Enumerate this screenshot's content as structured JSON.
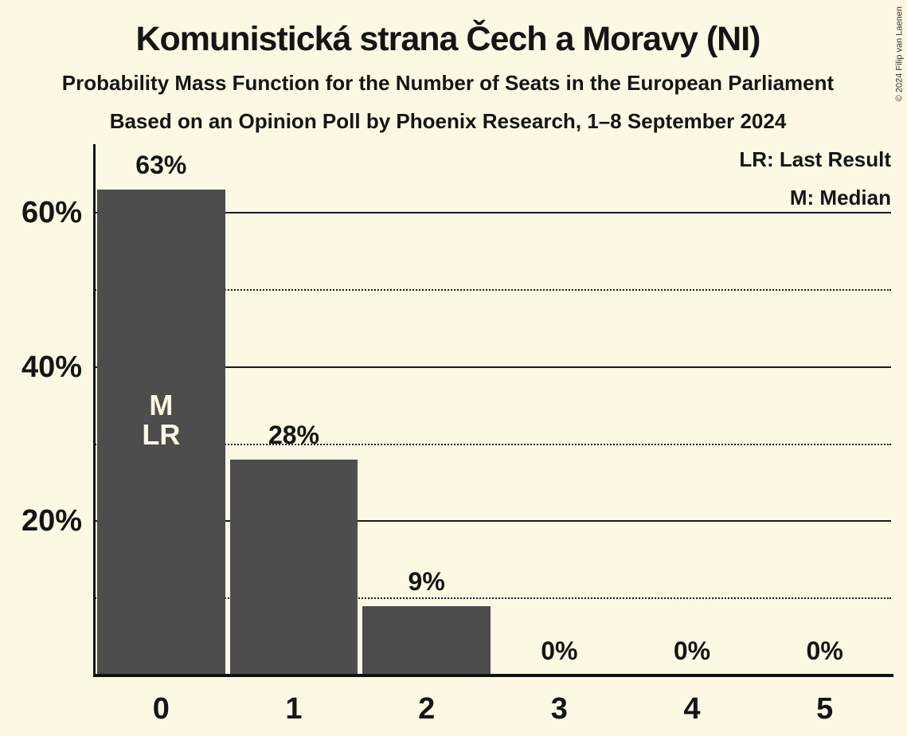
{
  "title": "Komunistická strana Čech a Moravy (NI)",
  "subtitles": {
    "line1": "Probability Mass Function for the Number of Seats in the European Parliament",
    "line2": "Based on an Opinion Poll by Phoenix Research, 1–8 September 2024"
  },
  "copyright": "© 2024 Filip van Laenen",
  "legend": {
    "last_result": "LR: Last Result",
    "median": "M: Median"
  },
  "colors": {
    "background": "#fdf8e3",
    "bar": "#4d4d4d",
    "text": "#151515",
    "bar_annotation_text": "#fdf8e3"
  },
  "chart_data": {
    "type": "bar",
    "title": "Komunistická strana Čech a Moravy (NI)",
    "categories": [
      "0",
      "1",
      "2",
      "3",
      "4",
      "5"
    ],
    "values": [
      63,
      28,
      9,
      0,
      0,
      0
    ],
    "value_labels": [
      "63%",
      "28%",
      "9%",
      "0%",
      "0%",
      "0%"
    ],
    "bar_annotations": [
      [
        "M",
        "LR"
      ],
      [],
      [],
      [],
      [],
      []
    ],
    "yticks": [
      {
        "value": 60,
        "label": "60%"
      },
      {
        "value": 40,
        "label": "40%"
      },
      {
        "value": 20,
        "label": "20%"
      }
    ],
    "gridlines": {
      "solid": [
        60,
        40,
        20
      ],
      "dotted": [
        50,
        30,
        10
      ]
    },
    "ylim": [
      0,
      69
    ],
    "grid": true,
    "legend_position": "top-right",
    "annotations_legend": {
      "LR": "Last Result",
      "M": "Median"
    }
  }
}
